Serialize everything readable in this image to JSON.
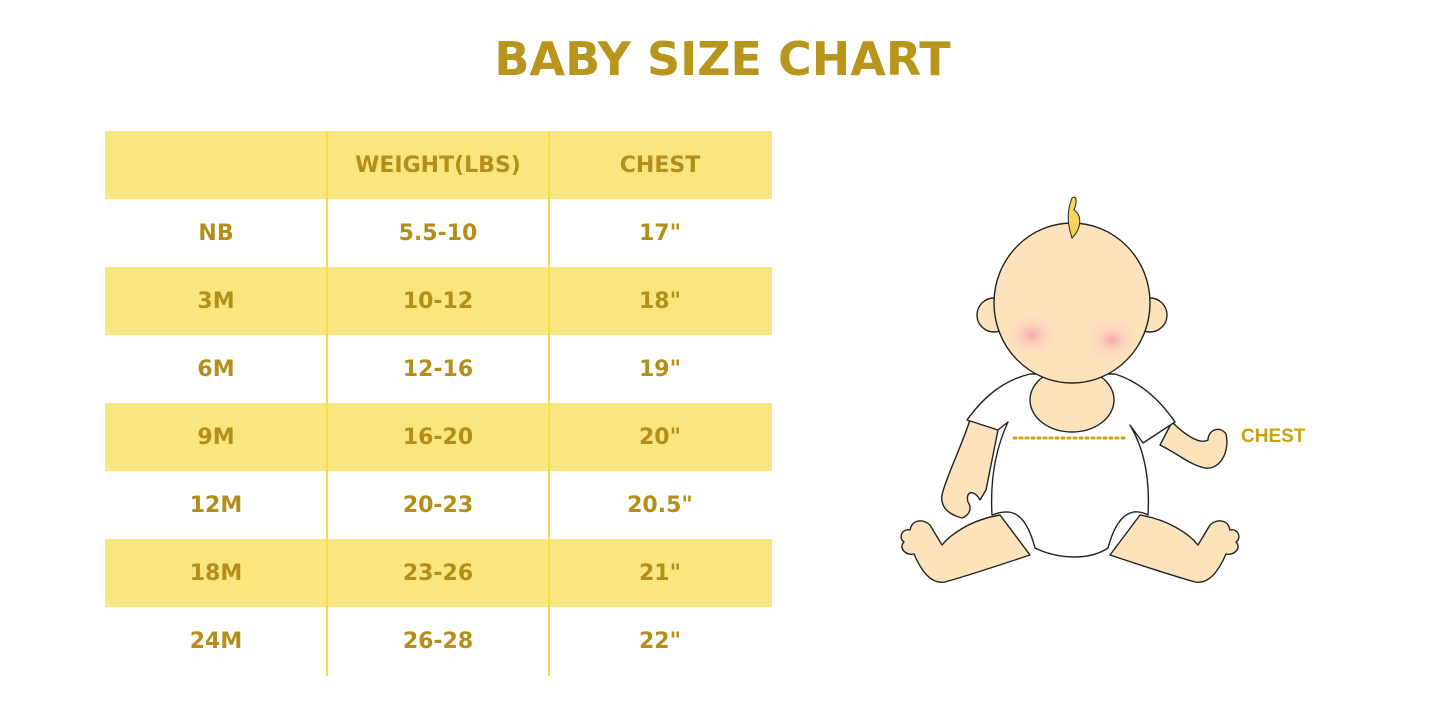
{
  "title": "BABY SIZE CHART",
  "table": {
    "headers": [
      "",
      "WEIGHT(LBS)",
      "CHEST"
    ],
    "rows": [
      [
        "NB",
        "5.5-10",
        "17\""
      ],
      [
        "3M",
        "10-12",
        "18\""
      ],
      [
        "6M",
        "12-16",
        "19\""
      ],
      [
        "9M",
        "16-20",
        "20\""
      ],
      [
        "12M",
        "20-23",
        "20.5\""
      ],
      [
        "18M",
        "23-26",
        "21\""
      ],
      [
        "24M",
        "26-28",
        "22\""
      ]
    ]
  },
  "illustration": {
    "chest_label": "CHEST"
  },
  "colors": {
    "accent_text": "#B38F1A",
    "band": "#FAE57E",
    "divider": "#F7D84E",
    "skin": "#FCE3BC"
  }
}
